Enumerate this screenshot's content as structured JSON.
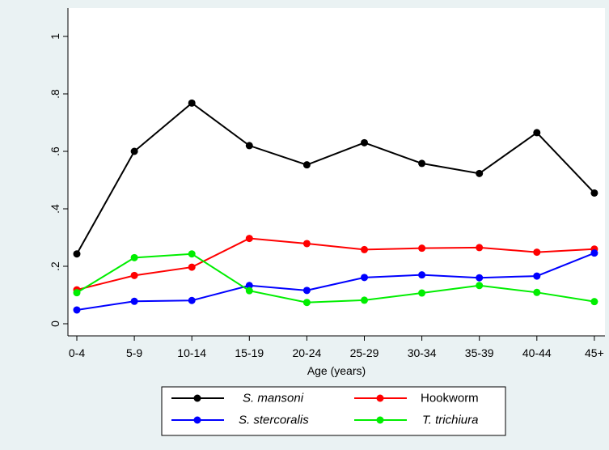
{
  "chart_data": {
    "type": "line",
    "title": "",
    "xlabel": "Age (years)",
    "ylabel": "",
    "categories": [
      "0-4",
      "5-9",
      "10-14",
      "15-19",
      "20-24",
      "25-29",
      "30-34",
      "35-39",
      "40-44",
      "45+"
    ],
    "ylim": [
      0,
      1
    ],
    "yticks": [
      0,
      0.2,
      0.4,
      0.6,
      0.8,
      1
    ],
    "ytick_labels": [
      "0",
      ".2",
      ".4",
      ".6",
      ".8",
      "1"
    ],
    "grid": false,
    "legend_position": "bottom",
    "series": [
      {
        "name": "S. mansoni",
        "italic": true,
        "color": "#000000",
        "values": [
          0.243,
          0.6,
          0.768,
          0.62,
          0.553,
          0.63,
          0.558,
          0.523,
          0.665,
          0.455
        ]
      },
      {
        "name": "Hookworm",
        "italic": false,
        "color": "#ff0000",
        "values": [
          0.118,
          0.168,
          0.197,
          0.297,
          0.279,
          0.258,
          0.263,
          0.265,
          0.249,
          0.26
        ]
      },
      {
        "name": "S. stercoralis",
        "italic": true,
        "color": "#0000ff",
        "values": [
          0.048,
          0.078,
          0.081,
          0.133,
          0.116,
          0.161,
          0.17,
          0.16,
          0.166,
          0.246
        ]
      },
      {
        "name": "T. trichiura",
        "italic": true,
        "color": "#00ee00",
        "values": [
          0.108,
          0.23,
          0.243,
          0.115,
          0.074,
          0.082,
          0.107,
          0.133,
          0.109,
          0.077
        ]
      }
    ]
  }
}
